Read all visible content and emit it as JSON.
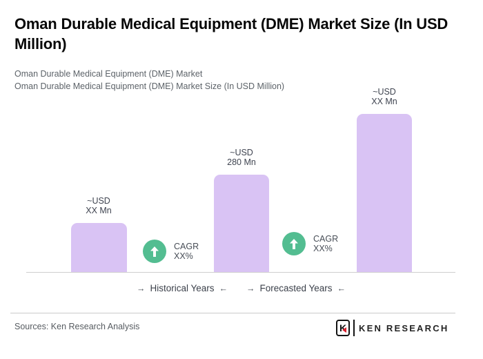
{
  "header": {
    "title": "Oman Durable Medical Equipment (DME) Market Size (In USD Million)"
  },
  "subtitle": {
    "line1": "Oman Durable Medical Equipment (DME) Market",
    "line2": "Oman Durable Medical Equipment (DME) Market Size (In USD Million)"
  },
  "chart_data": {
    "type": "bar",
    "title": "Oman Durable Medical Equipment (DME) Market Size (In USD Million)",
    "unit": "USD Million",
    "xlabel": "",
    "ylabel": "",
    "gridlines": false,
    "baseline_axis": true,
    "bar_color": "#d9c3f4",
    "badge_color": "#53bd91",
    "bars": [
      {
        "label_line1": "~USD",
        "label_line2": "XX Mn",
        "value_display": "~USD XX Mn",
        "approx_value_mn": 140,
        "period": "Historical Years"
      },
      {
        "label_line1": "~USD",
        "label_line2": "280 Mn",
        "value_display": "~USD 280 Mn",
        "approx_value_mn": 280,
        "period": "Historical Years"
      },
      {
        "label_line1": "~USD",
        "label_line2": "XX Mn",
        "value_display": "~USD XX Mn",
        "approx_value_mn": 455,
        "period": "Forecasted Years"
      }
    ],
    "cagr_badges": [
      {
        "label": "CAGR",
        "value": "XX%"
      },
      {
        "label": "CAGR",
        "value": "XX%"
      }
    ],
    "period_labels": [
      {
        "arrow_before": "→",
        "text": "Historical Years",
        "arrow_after": "←"
      },
      {
        "arrow_before": "→",
        "text": "Forecasted Years",
        "arrow_after": "←"
      }
    ]
  },
  "footer": {
    "sources": "Sources: Ken Research Analysis",
    "logo_emblem_letter": "K",
    "logo_text": "KEN RESEARCH"
  }
}
